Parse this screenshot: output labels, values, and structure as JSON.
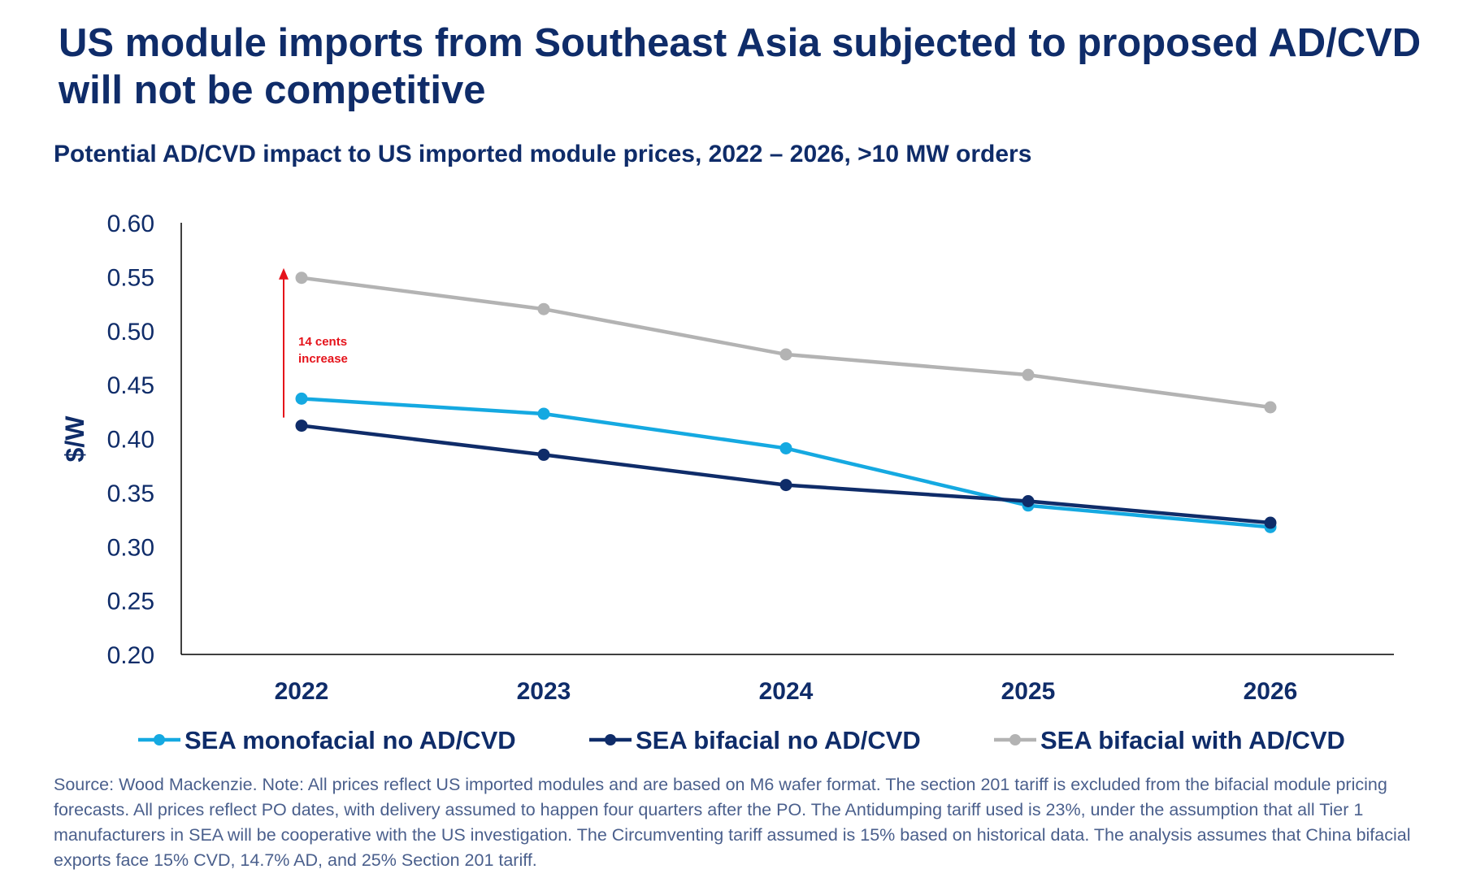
{
  "title": "US module imports from Southeast Asia subjected to proposed AD/CVD will not be competitive",
  "subtitle": "Potential AD/CVD impact to US imported module prices, 2022 – 2026, >10 MW orders",
  "source": "Source: Wood Mackenzie. Note: All prices reflect US imported modules and are based on M6 wafer format. The section 201 tariff is excluded from the bifacial module pricing forecasts. All prices reflect PO dates, with delivery assumed to happen four quarters after the PO. The Antidumping tariff used is 23%, under the assumption that all Tier 1 manufacturers in SEA will be cooperative with the US investigation. The Circumventing tariff assumed is 15% based on historical data. The analysis assumes that China bifacial exports face 15% CVD, 14.7% AD, and 25% Section 201 tariff.",
  "chart_data": {
    "type": "line",
    "x": [
      "2022",
      "2023",
      "2024",
      "2025",
      "2026"
    ],
    "ylabel": "$/W",
    "xlabel": "",
    "ylim": [
      0.2,
      0.6
    ],
    "yticks": [
      "0.60",
      "0.55",
      "0.50",
      "0.45",
      "0.40",
      "0.35",
      "0.30",
      "0.25",
      "0.20"
    ],
    "grid": false,
    "legend_position": "bottom",
    "series": [
      {
        "name": "SEA monofacial no AD/CVD",
        "color": "#15a9e1",
        "values": [
          0.437,
          0.423,
          0.391,
          0.338,
          0.318
        ]
      },
      {
        "name": "SEA bifacial no AD/CVD",
        "color": "#0f2c69",
        "values": [
          0.412,
          0.385,
          0.357,
          0.342,
          0.322
        ]
      },
      {
        "name": "SEA bifacial with AD/CVD",
        "color": "#b3b3b3",
        "values": [
          0.549,
          0.52,
          0.478,
          0.459,
          0.429
        ]
      }
    ],
    "annotation": {
      "text_line1": "14 cents",
      "text_line2": "increase",
      "color": "#e5131b",
      "from": 0.412,
      "to": 0.552,
      "x": "2022"
    }
  }
}
